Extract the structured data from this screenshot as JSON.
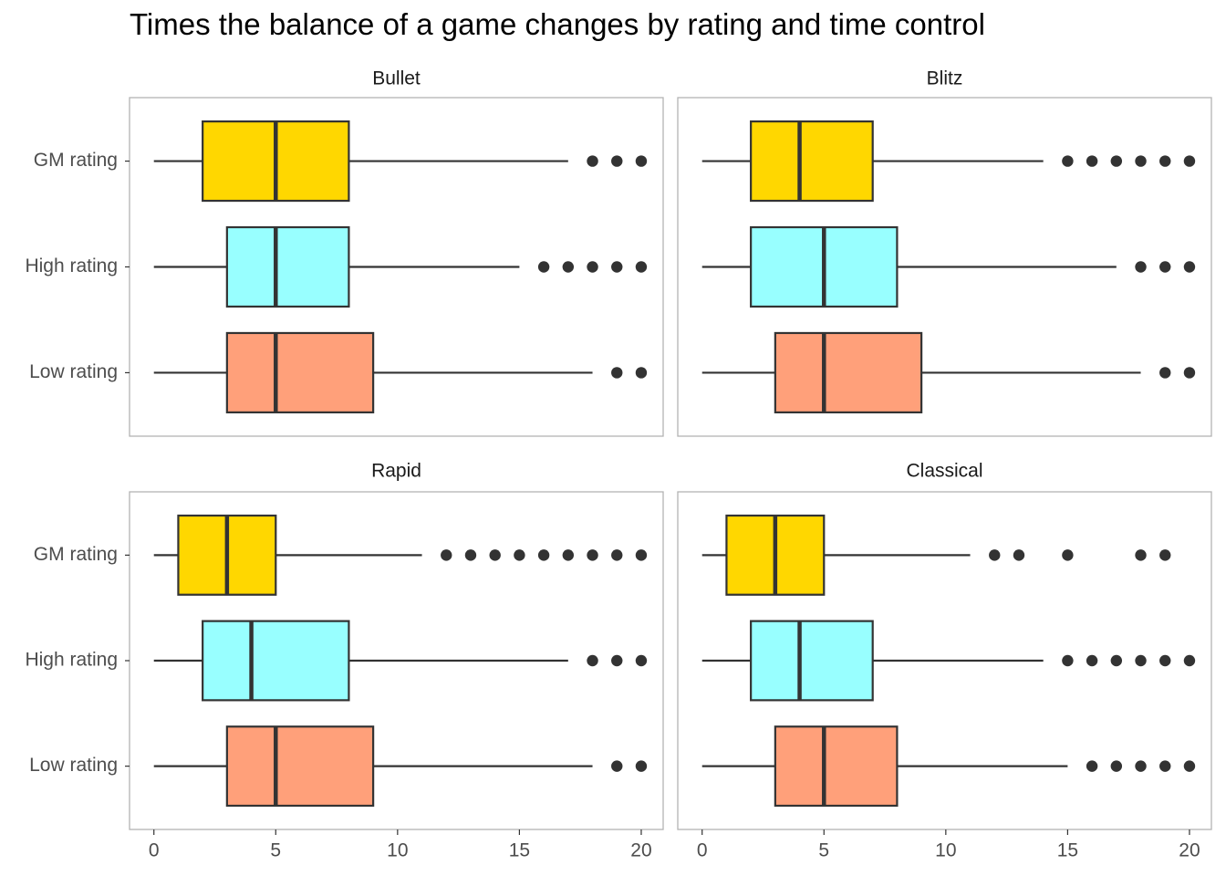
{
  "title": "Times the balance of a game changes by rating and time control",
  "chart_data": {
    "type": "boxplot",
    "title": "Times the balance of a game changes by rating and time control",
    "orientation": "horizontal",
    "xlim": [
      -1,
      20.9
    ],
    "x_ticks": [
      0,
      5,
      10,
      15,
      20
    ],
    "categories": [
      "GM rating",
      "High rating",
      "Low rating"
    ],
    "colors": {
      "GM rating": "#FFD700",
      "High rating": "#98FFFF",
      "Low rating": "#FFA07A"
    },
    "facet_layout": "2x2",
    "facets": [
      {
        "name": "Bullet",
        "boxes": [
          {
            "category": "GM rating",
            "whisker_low": 0,
            "q1": 2,
            "median": 5,
            "q3": 8,
            "whisker_high": 17,
            "outliers": [
              18,
              19,
              20
            ]
          },
          {
            "category": "High rating",
            "whisker_low": 0,
            "q1": 3,
            "median": 5,
            "q3": 8,
            "whisker_high": 15,
            "outliers": [
              16,
              17,
              18,
              19,
              20
            ]
          },
          {
            "category": "Low rating",
            "whisker_low": 0,
            "q1": 3,
            "median": 5,
            "q3": 9,
            "whisker_high": 18,
            "outliers": [
              19,
              20
            ]
          }
        ]
      },
      {
        "name": "Blitz",
        "boxes": [
          {
            "category": "GM rating",
            "whisker_low": 0,
            "q1": 2,
            "median": 4,
            "q3": 7,
            "whisker_high": 14,
            "outliers": [
              15,
              16,
              17,
              18,
              19,
              20
            ]
          },
          {
            "category": "High rating",
            "whisker_low": 0,
            "q1": 2,
            "median": 5,
            "q3": 8,
            "whisker_high": 17,
            "outliers": [
              18,
              19,
              20
            ]
          },
          {
            "category": "Low rating",
            "whisker_low": 0,
            "q1": 3,
            "median": 5,
            "q3": 9,
            "whisker_high": 18,
            "outliers": [
              19,
              20
            ]
          }
        ]
      },
      {
        "name": "Rapid",
        "boxes": [
          {
            "category": "GM rating",
            "whisker_low": 0,
            "q1": 1,
            "median": 3,
            "q3": 5,
            "whisker_high": 11,
            "outliers": [
              12,
              13,
              14,
              15,
              16,
              17,
              18,
              19,
              20
            ]
          },
          {
            "category": "High rating",
            "whisker_low": 0,
            "q1": 2,
            "median": 4,
            "q3": 8,
            "whisker_high": 17,
            "outliers": [
              18,
              19,
              20
            ]
          },
          {
            "category": "Low rating",
            "whisker_low": 0,
            "q1": 3,
            "median": 5,
            "q3": 9,
            "whisker_high": 18,
            "outliers": [
              19,
              20
            ]
          }
        ]
      },
      {
        "name": "Classical",
        "boxes": [
          {
            "category": "GM rating",
            "whisker_low": 0,
            "q1": 1,
            "median": 3,
            "q3": 5,
            "whisker_high": 11,
            "outliers": [
              12,
              13,
              15,
              18,
              19
            ]
          },
          {
            "category": "High rating",
            "whisker_low": 0,
            "q1": 2,
            "median": 4,
            "q3": 7,
            "whisker_high": 14,
            "outliers": [
              15,
              16,
              17,
              18,
              19,
              20
            ]
          },
          {
            "category": "Low rating",
            "whisker_low": 0,
            "q1": 3,
            "median": 5,
            "q3": 8,
            "whisker_high": 15,
            "outliers": [
              16,
              17,
              18,
              19,
              20
            ]
          }
        ]
      }
    ],
    "grid": false,
    "legend": "none"
  }
}
